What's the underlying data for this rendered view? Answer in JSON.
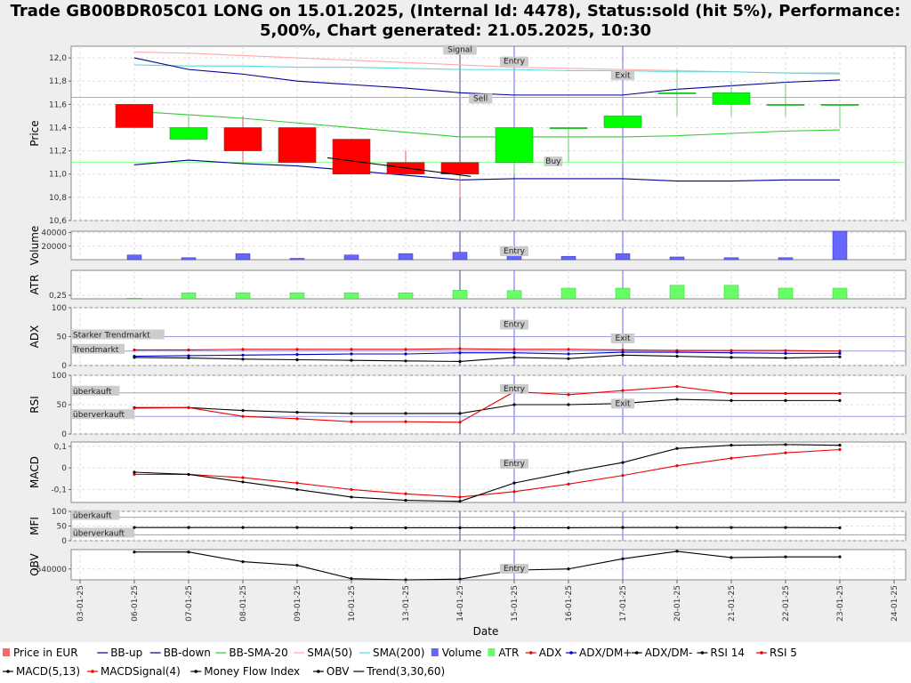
{
  "title_line1": "Trade GB00BDR05C01 LONG on 15.01.2025, (Internal Id: 4478), Status:sold (hit 5%), Performance:",
  "title_line2": "5,00%, Chart generated: 21.05.2025, 10:30",
  "chart_data": {
    "type": "candlestick",
    "xlabel": "Date",
    "dates": [
      "03-01-25",
      "06-01-25",
      "07-01-25",
      "08-01-25",
      "09-01-25",
      "10-01-25",
      "13-01-25",
      "14-01-25",
      "15-01-25",
      "16-01-25",
      "17-01-25",
      "20-01-25",
      "21-01-25",
      "22-01-25",
      "23-01-25",
      "24-01-25"
    ],
    "colors": {
      "up": "#00ff00",
      "down": "#ff0000",
      "bb": "#000099",
      "bbsma": "#33cc33",
      "sma50": "#ffaaaa",
      "sma200": "#55dddd",
      "volume": "#6666ff",
      "atr": "#66ff66",
      "red": "#ee0000",
      "blue": "#0000cc",
      "black": "#000000",
      "guide_blue": "#6666ff",
      "guide_line": "#9999dd"
    },
    "price": {
      "ylabel": "Price",
      "ylim": [
        10.6,
        12.1
      ],
      "yticks": [
        "10,6",
        "10,8",
        "11,0",
        "11,2",
        "11,4",
        "11,6",
        "11,8",
        "12,0"
      ],
      "candles": [
        {
          "d": 1,
          "o": 11.6,
          "c": 11.4,
          "h": 11.6,
          "l": 11.4
        },
        {
          "d": 2,
          "o": 11.3,
          "c": 11.4,
          "h": 11.5,
          "l": 11.3
        },
        {
          "d": 3,
          "o": 11.4,
          "c": 11.2,
          "h": 11.5,
          "l": 11.1
        },
        {
          "d": 4,
          "o": 11.4,
          "c": 11.1,
          "h": 11.4,
          "l": 11.1
        },
        {
          "d": 5,
          "o": 11.3,
          "c": 11.0,
          "h": 11.3,
          "l": 11.0
        },
        {
          "d": 6,
          "o": 11.1,
          "c": 11.0,
          "h": 11.2,
          "l": 11.0
        },
        {
          "d": 7,
          "o": 11.1,
          "c": 11.0,
          "h": 11.1,
          "l": 10.8
        },
        {
          "d": 8,
          "o": 11.1,
          "c": 11.4,
          "h": 11.4,
          "l": 11.0
        },
        {
          "d": 9,
          "o": 11.4,
          "c": 11.4,
          "h": 11.4,
          "l": 11.1
        },
        {
          "d": 10,
          "o": 11.4,
          "c": 11.5,
          "h": 11.5,
          "l": 11.4
        },
        {
          "d": 11,
          "o": 11.7,
          "c": 11.7,
          "h": 11.9,
          "l": 11.5
        },
        {
          "d": 12,
          "o": 11.6,
          "c": 11.7,
          "h": 11.8,
          "l": 11.5
        },
        {
          "d": 13,
          "o": 11.6,
          "c": 11.6,
          "h": 11.8,
          "l": 11.5
        },
        {
          "d": 14,
          "o": 11.6,
          "c": 11.6,
          "h": 11.6,
          "l": 11.4
        }
      ],
      "bb_up": [
        12.0,
        11.9,
        11.86,
        11.8,
        11.77,
        11.74,
        11.7,
        11.68,
        11.68,
        11.68,
        11.73,
        11.76,
        11.79,
        11.81
      ],
      "bb_down": [
        11.08,
        11.12,
        11.09,
        11.07,
        11.03,
        10.99,
        10.95,
        10.96,
        10.96,
        10.96,
        10.94,
        10.94,
        10.95,
        10.95
      ],
      "bb_sma20": [
        11.54,
        11.51,
        11.48,
        11.44,
        11.4,
        11.36,
        11.32,
        11.32,
        11.32,
        11.32,
        11.33,
        11.35,
        11.37,
        11.38
      ],
      "sma50": [
        12.05,
        12.04,
        12.02,
        12.0,
        11.98,
        11.96,
        11.94,
        11.92,
        11.91,
        11.9,
        11.89,
        11.88,
        11.87,
        11.86
      ],
      "sma200": [
        11.94,
        11.93,
        11.93,
        11.92,
        11.92,
        11.91,
        11.9,
        11.9,
        11.89,
        11.89,
        11.88,
        11.88,
        11.87,
        11.87
      ],
      "hlines": [
        {
          "y": 11.66,
          "color": "#ff8888"
        },
        {
          "y": 11.1,
          "color": "#88ff88"
        }
      ],
      "trend": [
        [
          5,
          11.14
        ],
        [
          7.2,
          10.98
        ]
      ],
      "labels": [
        {
          "text": "Signal",
          "x": 7,
          "y": 12.05
        },
        {
          "text": "Entry",
          "x": 8,
          "y": 11.95
        },
        {
          "text": "Exit",
          "x": 10,
          "y": 11.83
        },
        {
          "text": "Sell",
          "x": 7.38,
          "y": 11.63
        },
        {
          "text": "Buy",
          "x": 8.72,
          "y": 11.09
        }
      ]
    },
    "volume": {
      "ylabel": "Volume",
      "ylim": [
        0,
        42000
      ],
      "yticks": [
        "20000",
        "40000"
      ],
      "values": [
        7000,
        3000,
        9000,
        2000,
        7000,
        9000,
        11000,
        6000,
        5000,
        9000,
        4000,
        3000,
        3000,
        42000
      ],
      "label": "Entry"
    },
    "atr": {
      "ylabel": "ATR",
      "ylim": [
        0.24,
        0.32
      ],
      "yticks": [
        "0,25"
      ],
      "values": [
        0.242,
        0.257,
        0.257,
        0.257,
        0.257,
        0.257,
        0.264,
        0.263,
        0.27,
        0.27,
        0.278,
        0.278,
        0.27,
        0.27
      ]
    },
    "adx": {
      "ylabel": "ADX",
      "ylim": [
        0,
        100
      ],
      "yticks": [
        "0",
        "50",
        "100"
      ],
      "adx": [
        27,
        27,
        28,
        28,
        28,
        28,
        29,
        28,
        28,
        27,
        26,
        26,
        26,
        25
      ],
      "dm_plus": [
        16,
        17,
        18,
        19,
        20,
        20,
        22,
        22,
        20,
        23,
        23,
        22,
        21,
        21
      ],
      "dm_minus": [
        14,
        13,
        11,
        10,
        9,
        8,
        7,
        14,
        12,
        18,
        16,
        14,
        13,
        15
      ],
      "ref_lines": [
        {
          "y": 50,
          "label": "Starker Trendmarkt"
        },
        {
          "y": 25,
          "label": "Trendmarkt"
        }
      ],
      "labels": [
        {
          "text": "Entry",
          "x": 8,
          "y": 67
        },
        {
          "text": "Exit",
          "x": 10,
          "y": 43
        }
      ]
    },
    "rsi": {
      "ylabel": "RSI",
      "ylim": [
        0,
        100
      ],
      "yticks": [
        "0",
        "50",
        "100"
      ],
      "rsi14": [
        45,
        45,
        40,
        37,
        35,
        35,
        35,
        50,
        50,
        52,
        59,
        57,
        57,
        57
      ],
      "rsi5": [
        44,
        45,
        30,
        26,
        21,
        21,
        20,
        72,
        67,
        74,
        81,
        69,
        69,
        69
      ],
      "ref_lines": [
        {
          "y": 70,
          "label": "überkauft"
        },
        {
          "y": 30,
          "label": "überverkauft"
        }
      ],
      "labels": [
        {
          "text": "Entry",
          "x": 8,
          "y": 73
        },
        {
          "text": "Exit",
          "x": 10,
          "y": 48
        }
      ]
    },
    "macd": {
      "ylabel": "MACD",
      "ylim": [
        -0.16,
        0.12
      ],
      "yticks": [
        "-0,1",
        "0",
        "0,1"
      ],
      "macd": [
        -0.02,
        -0.03,
        -0.065,
        -0.1,
        -0.135,
        -0.15,
        -0.155,
        -0.07,
        -0.02,
        0.025,
        0.09,
        0.105,
        0.108,
        0.105
      ],
      "signal": [
        -0.03,
        -0.03,
        -0.045,
        -0.07,
        -0.1,
        -0.12,
        -0.135,
        -0.11,
        -0.075,
        -0.035,
        0.01,
        0.045,
        0.07,
        0.085
      ],
      "label": "Entry"
    },
    "mfi": {
      "ylabel": "MFI",
      "ylim": [
        0,
        100
      ],
      "yticks": [
        "0",
        "50",
        "100"
      ],
      "values": [
        45,
        45,
        45,
        45,
        44,
        44,
        44,
        44,
        44,
        45,
        45,
        45,
        45,
        44
      ],
      "ref_lines": [
        {
          "y": 80,
          "label": "überkauft"
        },
        {
          "y": 20,
          "label": "überverkauft"
        }
      ]
    },
    "obv": {
      "ylabel": "OBV",
      "ylim": [
        -585000,
        -460000
      ],
      "yticks": [
        "-540000"
      ],
      "values": [
        -470000,
        -470000,
        -510000,
        -525000,
        -580000,
        -585000,
        -582000,
        -545000,
        -540000,
        -498000,
        -467000,
        -493000,
        -490000,
        -490000
      ],
      "label": "Entry"
    },
    "verticals": [
      {
        "x": 7,
        "color": "#444488"
      },
      {
        "x": 8,
        "color": "#6666ff"
      },
      {
        "x": 10,
        "color": "#6666ff"
      }
    ],
    "legend": [
      {
        "name": "Price in EUR",
        "sym": "square",
        "color": "#ff6666"
      },
      {
        "name": "BB-up",
        "sym": "line",
        "color": "#000099"
      },
      {
        "name": "BB-down",
        "sym": "line",
        "color": "#000099"
      },
      {
        "name": "BB-SMA-20",
        "sym": "line",
        "color": "#33cc33"
      },
      {
        "name": "SMA(50)",
        "sym": "line",
        "color": "#ffaaaa"
      },
      {
        "name": "SMA(200)",
        "sym": "line",
        "color": "#55dddd"
      },
      {
        "name": "Volume",
        "sym": "square",
        "color": "#6666ff"
      },
      {
        "name": "ATR",
        "sym": "square",
        "color": "#66ff66"
      },
      {
        "name": "ADX",
        "sym": "dotline",
        "color": "#ee0000"
      },
      {
        "name": "ADX/DM+",
        "sym": "dotline",
        "color": "#0000cc"
      },
      {
        "name": "ADX/DM-",
        "sym": "dotline",
        "color": "#000000"
      },
      {
        "name": "RSI 14",
        "sym": "dotline",
        "color": "#000000"
      },
      {
        "name": "RSI 5",
        "sym": "dotline",
        "color": "#ee0000"
      },
      {
        "name": "MACD(5,13)",
        "sym": "dotline",
        "color": "#000000"
      },
      {
        "name": "MACDSignal(4)",
        "sym": "dotline",
        "color": "#ee0000"
      },
      {
        "name": "Money Flow Index",
        "sym": "dotline",
        "color": "#000000"
      },
      {
        "name": "OBV",
        "sym": "dotline",
        "color": "#000000"
      },
      {
        "name": "Trend(3,30,60)",
        "sym": "line",
        "color": "#000000"
      }
    ]
  }
}
